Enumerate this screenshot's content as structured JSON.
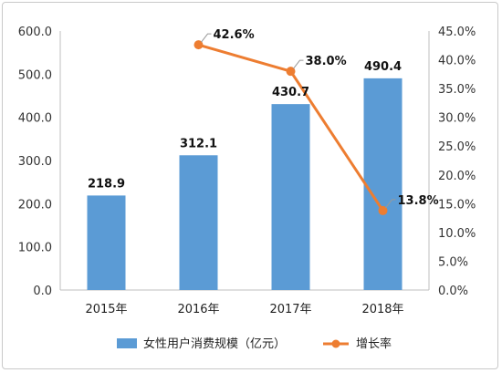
{
  "chart_data": {
    "type": "bar+line",
    "categories": [
      "2015年",
      "2016年",
      "2017年",
      "2018年"
    ],
    "bar_series": {
      "name": "女性用户消费规模（亿元）",
      "values": [
        218.9,
        312.1,
        430.7,
        490.4
      ],
      "labels": [
        "218.9",
        "312.1",
        "430.7",
        "490.4"
      ],
      "color": "#5b9bd5"
    },
    "line_series": {
      "name": "增长率",
      "x_index": [
        1,
        2,
        3
      ],
      "values": [
        42.6,
        38.0,
        13.8
      ],
      "labels": [
        "42.6%",
        "38.0%",
        "13.8%"
      ],
      "color": "#ed7d31"
    },
    "y_left": {
      "min": 0,
      "max": 600,
      "ticks": [
        "0.0",
        "100.0",
        "200.0",
        "300.0",
        "400.0",
        "500.0",
        "600.0"
      ]
    },
    "y_right": {
      "min": 0,
      "max": 45,
      "ticks": [
        "0.0%",
        "5.0%",
        "10.0%",
        "15.0%",
        "20.0%",
        "25.0%",
        "30.0%",
        "35.0%",
        "40.0%",
        "45.0%"
      ]
    },
    "legend_position": "bottom",
    "grid": false
  }
}
